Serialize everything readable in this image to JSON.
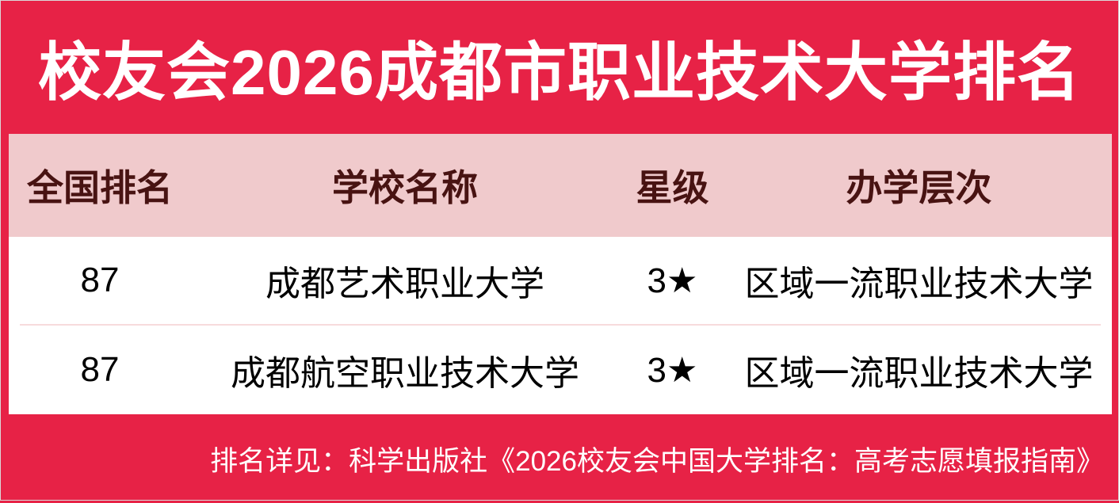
{
  "title": "校友会2026成都市职业技术大学排名",
  "table": {
    "headers": {
      "rank": "全国排名",
      "school": "学校名称",
      "star": "星级",
      "level": "办学层次"
    },
    "rows": [
      {
        "rank": "87",
        "school": "成都艺术职业大学",
        "star": "3★",
        "level": "区域一流职业技术大学"
      },
      {
        "rank": "87",
        "school": "成都航空职业技术大学",
        "star": "3★",
        "level": "区域一流职业技术大学"
      }
    ]
  },
  "footer": {
    "note": "排名详见：科学出版社《2026校友会中国大学排名：高考志愿填报指南》"
  },
  "colors": {
    "background_red": "#E72246",
    "header_pink": "#F0CACC",
    "header_text_maroon": "#481312",
    "row_background": "#FFFFFF",
    "row_text": "#000000",
    "row_divider": "#F7DBDC",
    "title_text": "#FFFFFF",
    "footer_text": "#FFFFFF"
  },
  "chart_data": {
    "type": "table",
    "title": "校友会2026成都市职业技术大学排名",
    "columns": [
      "全国排名",
      "学校名称",
      "星级",
      "办学层次"
    ],
    "rows": [
      [
        "87",
        "成都艺术职业大学",
        "3★",
        "区域一流职业技术大学"
      ],
      [
        "87",
        "成都航空职业技术大学",
        "3★",
        "区域一流职业技术大学"
      ]
    ],
    "footnote": "排名详见：科学出版社《2026校友会中国大学排名：高考志愿填报指南》",
    "layout": "header-band-top, pink-header-row, white-data-rows, red-footer-band"
  }
}
